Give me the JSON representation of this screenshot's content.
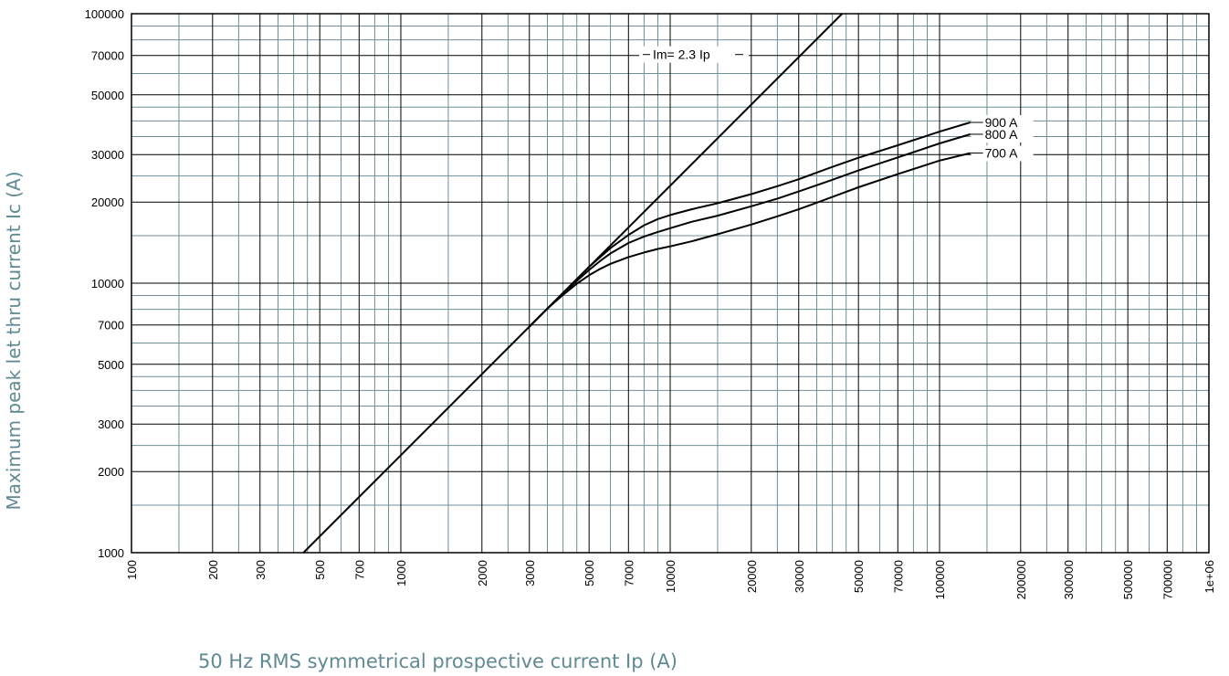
{
  "chart_data": {
    "type": "line",
    "title": "",
    "xlabel": "50 Hz RMS symmetrical prospective current Ip (A)",
    "ylabel": "Maximum peak let thru current Ic (A)",
    "xscale": "log",
    "yscale": "log",
    "xlim": [
      100,
      1000000
    ],
    "ylim": [
      1000,
      100000
    ],
    "grid": true,
    "x_ticks": [
      100,
      200,
      300,
      500,
      700,
      1000,
      2000,
      3000,
      5000,
      7000,
      10000,
      20000,
      30000,
      50000,
      70000,
      100000,
      200000,
      300000,
      500000,
      700000,
      1000000
    ],
    "x_tick_labels": [
      "100",
      "200",
      "300",
      "500",
      "700",
      "1000",
      "2000",
      "3000",
      "5000",
      "7000",
      "10000",
      "20000",
      "30000",
      "50000",
      "70000",
      "100000",
      "200000",
      "300000",
      "500000",
      "700000",
      "1e+06"
    ],
    "y_ticks": [
      1000,
      2000,
      3000,
      5000,
      7000,
      10000,
      20000,
      30000,
      50000,
      70000,
      100000
    ],
    "y_tick_labels": [
      "1000",
      "2000",
      "3000",
      "5000",
      "7000",
      "10000",
      "20000",
      "30000",
      "50000",
      "70000",
      "100000"
    ],
    "x_minor_grid": [
      150,
      250,
      350,
      400,
      450,
      600,
      800,
      900,
      1500,
      2500,
      3500,
      4000,
      4500,
      6000,
      8000,
      9000,
      15000,
      25000,
      35000,
      40000,
      45000,
      60000,
      80000,
      90000,
      150000,
      250000,
      350000,
      400000,
      450000,
      600000,
      800000,
      900000
    ],
    "y_minor_grid": [
      1500,
      2500,
      3500,
      4000,
      4500,
      6000,
      8000,
      9000,
      15000,
      25000,
      35000,
      40000,
      45000,
      60000,
      80000,
      90000
    ],
    "reference_line": {
      "name": "Im= 2.3 Ip",
      "x": [
        435,
        43480
      ],
      "y": [
        1000,
        100000
      ]
    },
    "series": [
      {
        "name": "900 A",
        "x": [
          3000,
          3500,
          4000,
          4500,
          5000,
          5500,
          6000,
          7000,
          8000,
          9000,
          10000,
          12000,
          15000,
          20000,
          25000,
          30000,
          40000,
          50000,
          70000,
          100000,
          130000
        ],
        "y": [
          6900,
          8050,
          9200,
          10350,
          11500,
          12500,
          13500,
          15100,
          16400,
          17300,
          17900,
          18800,
          19800,
          21400,
          22900,
          24300,
          27000,
          29200,
          32500,
          36500,
          39500
        ]
      },
      {
        "name": "800 A",
        "x": [
          3000,
          3500,
          4000,
          4500,
          5000,
          5500,
          6000,
          7000,
          8000,
          9000,
          10000,
          12000,
          15000,
          20000,
          25000,
          30000,
          40000,
          50000,
          70000,
          100000,
          130000
        ],
        "y": [
          6900,
          8050,
          9150,
          10200,
          11200,
          12100,
          12900,
          14100,
          14900,
          15500,
          16000,
          16900,
          17800,
          19300,
          20600,
          21900,
          24200,
          26200,
          29300,
          33000,
          35700
        ]
      },
      {
        "name": "700 A",
        "x": [
          3000,
          3500,
          4000,
          4500,
          5000,
          5500,
          6000,
          7000,
          8000,
          9000,
          10000,
          12000,
          15000,
          20000,
          25000,
          30000,
          40000,
          50000,
          70000,
          100000,
          130000
        ],
        "y": [
          6900,
          8050,
          9050,
          9950,
          10700,
          11300,
          11800,
          12500,
          13000,
          13400,
          13700,
          14300,
          15200,
          16500,
          17700,
          18800,
          20900,
          22700,
          25400,
          28500,
          30400
        ]
      }
    ],
    "colors": {
      "line": "#000000",
      "major_grid": "#000000",
      "minor_grid": "#6f8f98",
      "axis_title": "#5f8a94"
    }
  }
}
